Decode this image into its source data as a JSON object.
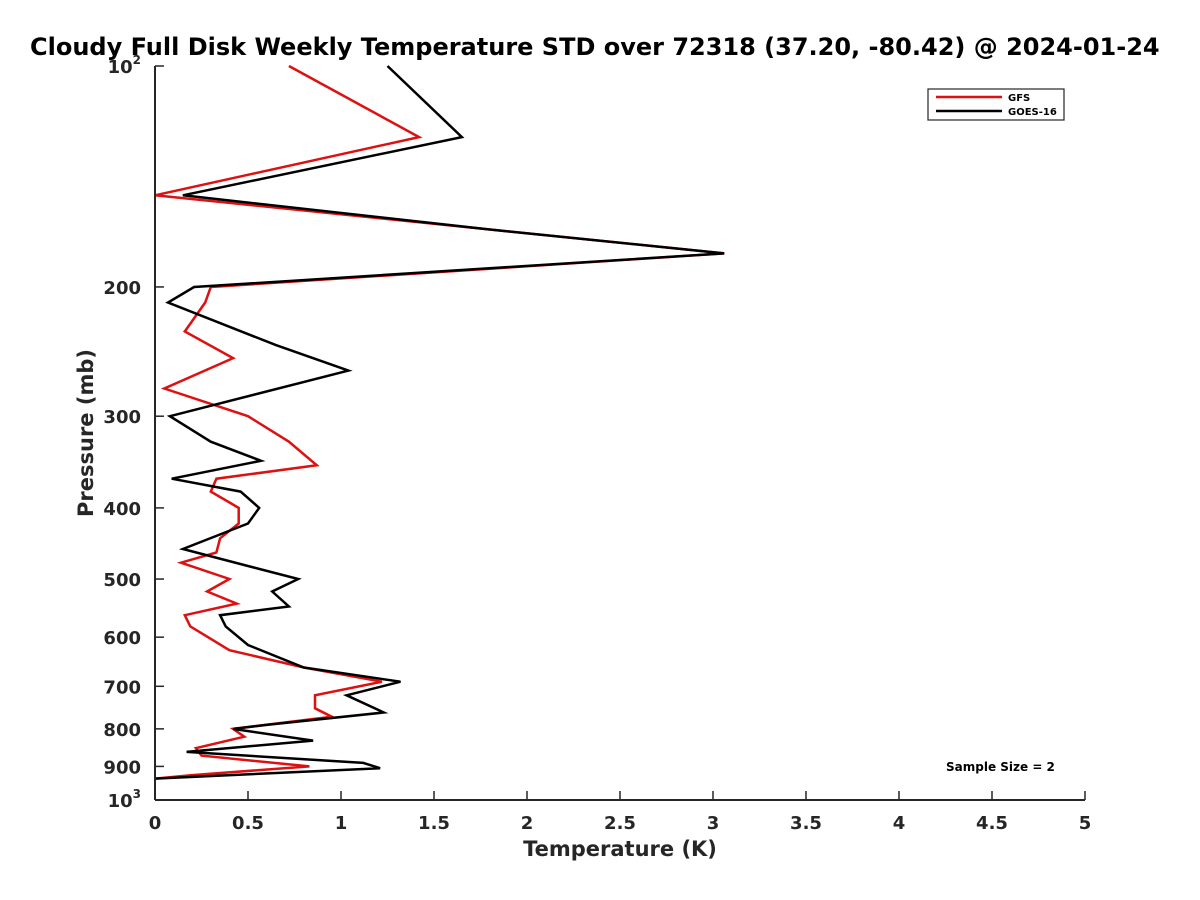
{
  "chart_data": {
    "type": "line",
    "title": "Cloudy Full Disk Weekly Temperature STD over 72318 (37.20, -80.42) @ 2024-01-24",
    "xlabel": "Temperature (K)",
    "ylabel": "Pressure (mb)",
    "xlim": [
      0,
      5
    ],
    "ylim": [
      100,
      1000
    ],
    "y_scale": "log",
    "y_reversed": true,
    "grid": false,
    "legend_position": "top-right",
    "xticks": [
      "0",
      "0.5",
      "1",
      "1.5",
      "2",
      "2.5",
      "3",
      "3.5",
      "4",
      "4.5",
      "5"
    ],
    "xtick_values": [
      0,
      0.5,
      1,
      1.5,
      2,
      2.5,
      3,
      3.5,
      4,
      4.5,
      5
    ],
    "yticks": [
      {
        "value": 100,
        "base": "10",
        "exp": "2"
      },
      {
        "value": 200,
        "label": "200"
      },
      {
        "value": 300,
        "label": "300"
      },
      {
        "value": 400,
        "label": "400"
      },
      {
        "value": 500,
        "label": "500"
      },
      {
        "value": 600,
        "label": "600"
      },
      {
        "value": 700,
        "label": "700"
      },
      {
        "value": 800,
        "label": "800"
      },
      {
        "value": 900,
        "label": "900"
      },
      {
        "value": 1000,
        "base": "10",
        "exp": "3"
      }
    ],
    "annotation": "Sample Size = 2",
    "series": [
      {
        "name": "GFS",
        "color": "#dd1111",
        "points": [
          [
            0.72,
            100
          ],
          [
            1.42,
            125
          ],
          [
            0,
            150
          ],
          [
            1.8,
            167
          ],
          [
            3.06,
            180
          ],
          [
            0.3,
            200
          ],
          [
            0.27,
            210
          ],
          [
            0.16,
            230
          ],
          [
            0.42,
            250
          ],
          [
            0.05,
            275
          ],
          [
            0.5,
            300
          ],
          [
            0.72,
            325
          ],
          [
            0.87,
            350
          ],
          [
            0.33,
            365
          ],
          [
            0.3,
            380
          ],
          [
            0.45,
            400
          ],
          [
            0.45,
            420
          ],
          [
            0.35,
            440
          ],
          [
            0.33,
            460
          ],
          [
            0.14,
            475
          ],
          [
            0.4,
            500
          ],
          [
            0.28,
            520
          ],
          [
            0.44,
            540
          ],
          [
            0.16,
            560
          ],
          [
            0.19,
            580
          ],
          [
            0.4,
            625
          ],
          [
            0.8,
            660
          ],
          [
            1.22,
            690
          ],
          [
            0.86,
            720
          ],
          [
            0.86,
            750
          ],
          [
            0.95,
            770
          ],
          [
            0.42,
            800
          ],
          [
            0.48,
            820
          ],
          [
            0.22,
            850
          ],
          [
            0.25,
            870
          ],
          [
            0.83,
            900
          ],
          [
            0.2,
            925
          ],
          [
            0.0,
            935
          ]
        ]
      },
      {
        "name": "GOES-16",
        "color": "#000000",
        "points": [
          [
            1.25,
            100
          ],
          [
            1.65,
            125
          ],
          [
            0.15,
            150
          ],
          [
            1.8,
            167
          ],
          [
            3.06,
            180
          ],
          [
            0.21,
            200
          ],
          [
            0.07,
            210
          ],
          [
            0.65,
            240
          ],
          [
            1.04,
            260
          ],
          [
            0.08,
            300
          ],
          [
            0.3,
            325
          ],
          [
            0.57,
            345
          ],
          [
            0.09,
            365
          ],
          [
            0.46,
            380
          ],
          [
            0.56,
            400
          ],
          [
            0.5,
            420
          ],
          [
            0.15,
            455
          ],
          [
            0.5,
            480
          ],
          [
            0.77,
            500
          ],
          [
            0.63,
            520
          ],
          [
            0.72,
            545
          ],
          [
            0.35,
            560
          ],
          [
            0.38,
            580
          ],
          [
            0.5,
            615
          ],
          [
            0.8,
            660
          ],
          [
            1.32,
            690
          ],
          [
            1.03,
            720
          ],
          [
            1.23,
            760
          ],
          [
            0.6,
            790
          ],
          [
            0.42,
            800
          ],
          [
            0.85,
            830
          ],
          [
            0.17,
            860
          ],
          [
            1.12,
            890
          ],
          [
            1.21,
            905
          ],
          [
            0.0,
            935
          ]
        ]
      }
    ]
  }
}
